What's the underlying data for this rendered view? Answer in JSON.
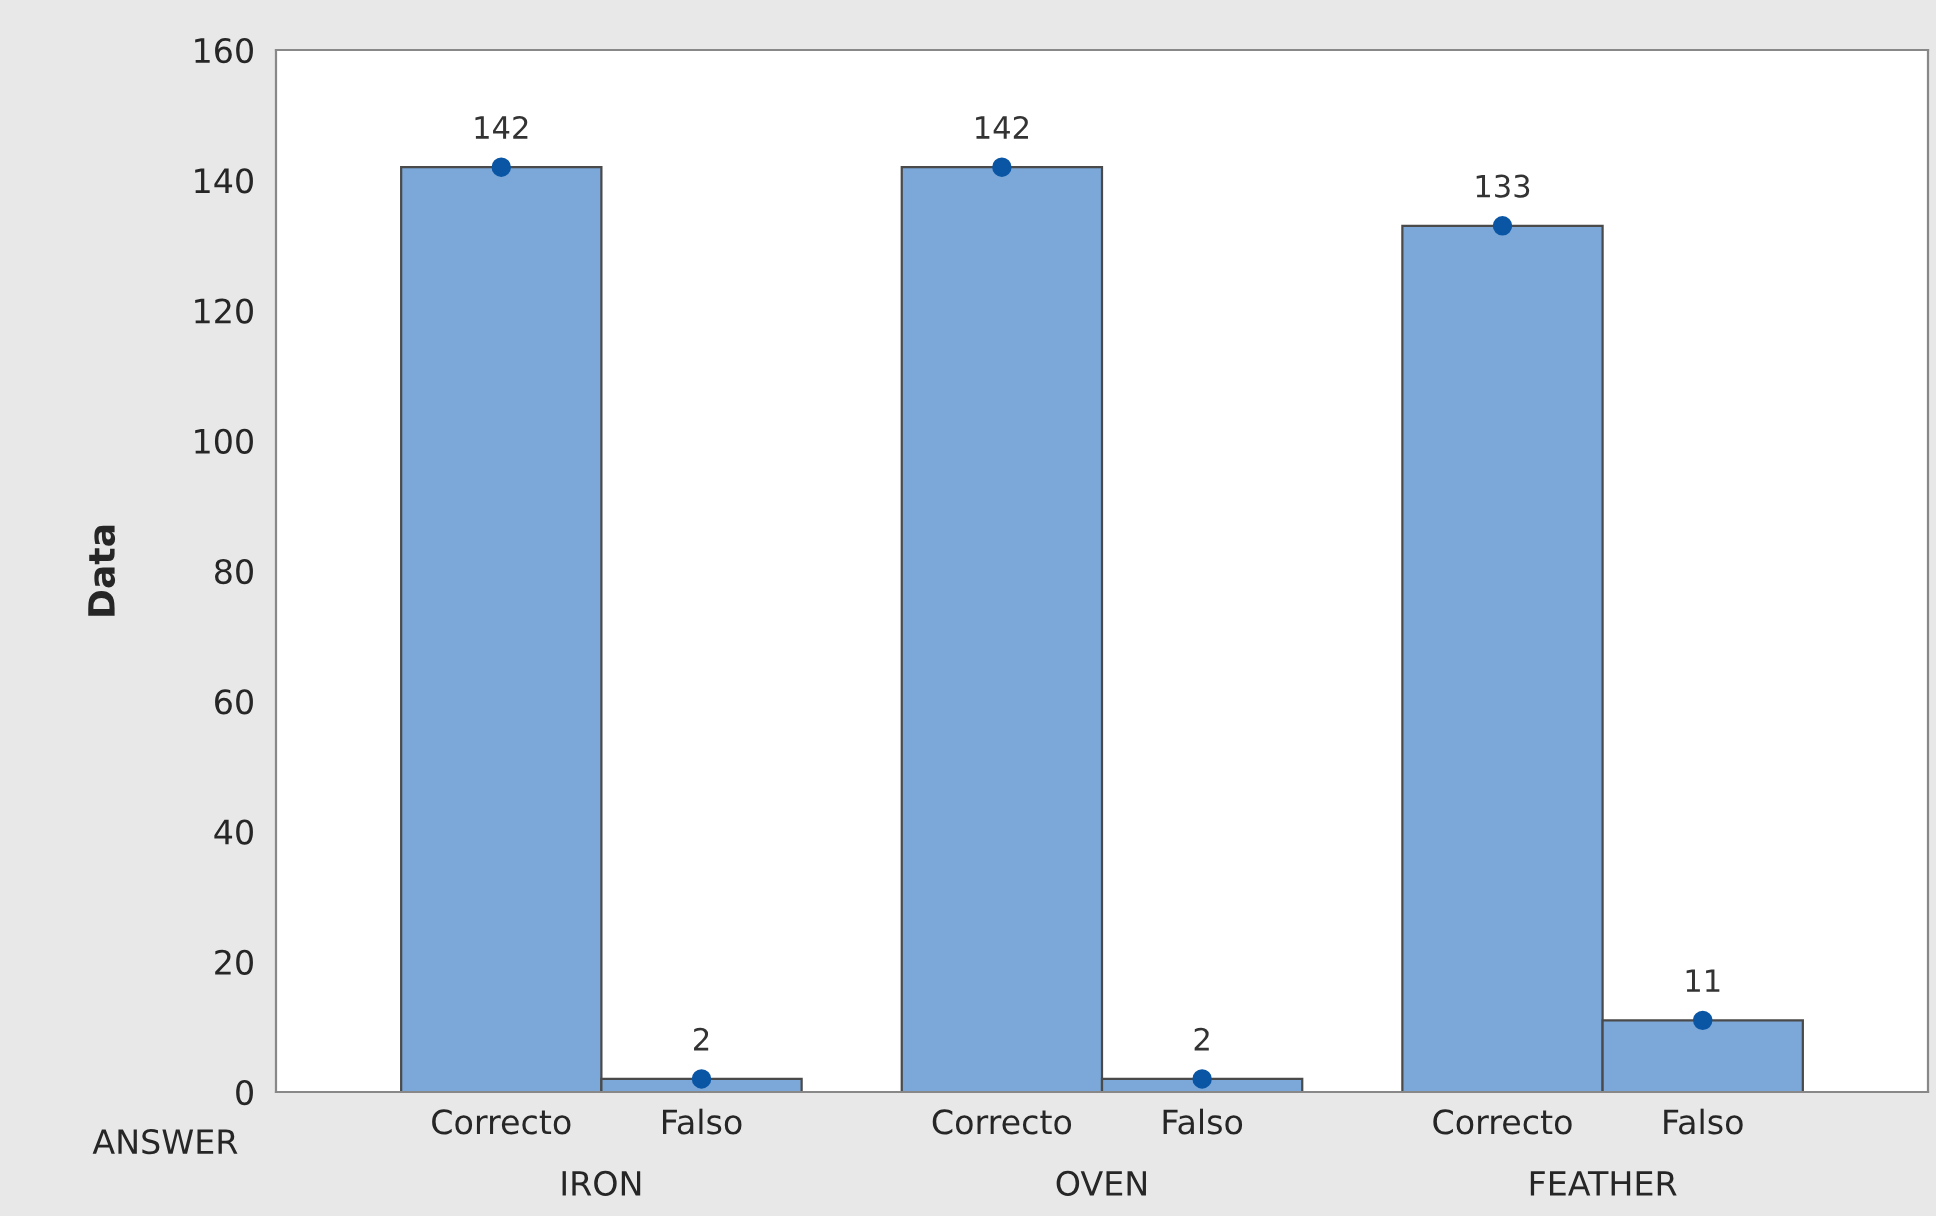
{
  "chart_data": {
    "type": "bar",
    "ylabel": "Data",
    "categories": [
      "Correcto",
      "Falso",
      "Correcto",
      "Falso",
      "Correcto",
      "Falso"
    ],
    "series": [
      {
        "color": "#7ba7d9",
        "values": [
          142,
          2,
          142,
          2,
          133,
          11
        ],
        "value_labels": [
          "142",
          "2",
          "142",
          "2",
          "133",
          "11"
        ]
      },
      {
        "type": "scatter",
        "color": "#0a56a4",
        "values": [
          142,
          2,
          142,
          2,
          133,
          11
        ]
      }
    ],
    "marker": "circle",
    "ylim": [
      0,
      160
    ],
    "yticks": [
      0,
      20,
      40,
      60,
      80,
      100,
      120,
      140,
      160
    ],
    "grid": false,
    "annotations": [
      "ANSWER",
      "IRON",
      "OVEN",
      "FEATHER"
    ]
  }
}
